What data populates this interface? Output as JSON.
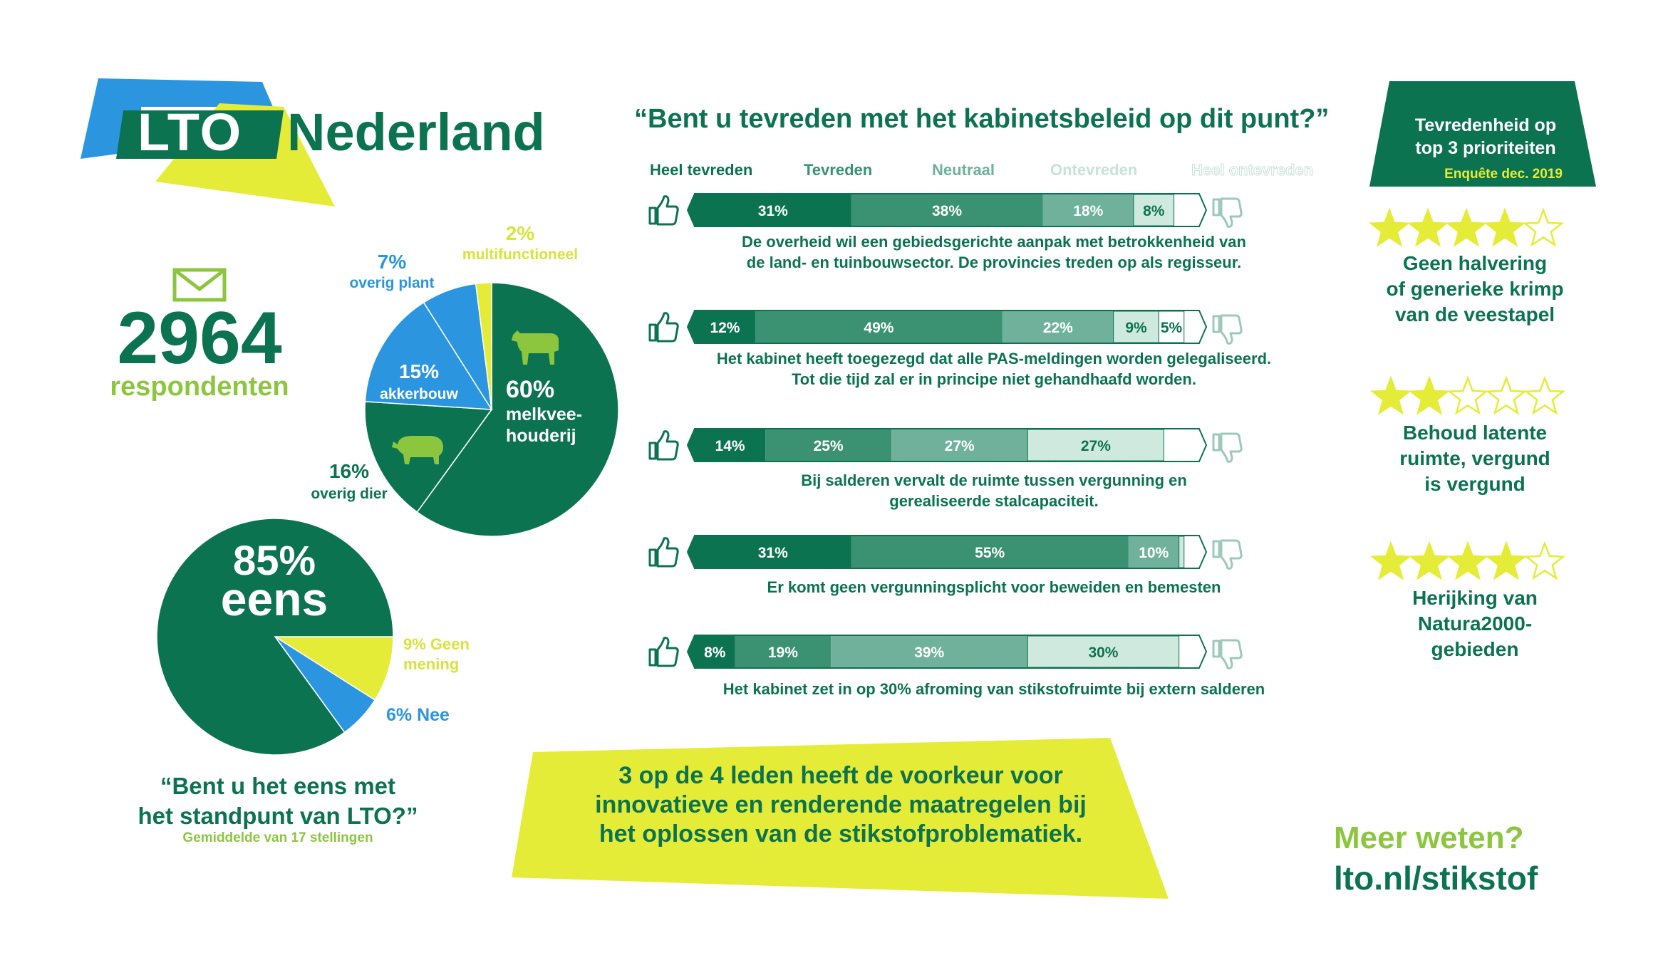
{
  "logo": {
    "badge": "LTO",
    "name": "Nederland"
  },
  "respondents": {
    "count": "2964",
    "label": "respondenten"
  },
  "sector_pie": {
    "labels": [
      {
        "pct": "60%",
        "name": "melkvee-",
        "name2": "houderij"
      },
      {
        "pct": "16%",
        "name": "overig dier"
      },
      {
        "pct": "15%",
        "name": "akkerbouw"
      },
      {
        "pct": "7%",
        "name": "overig plant"
      },
      {
        "pct": "2%",
        "name": "multifunctioneel"
      }
    ]
  },
  "agree_pie": {
    "big": "85%",
    "big2": "eens",
    "no_label": "6% Nee",
    "neutral_label": "9% Geen",
    "neutral_label2": "mening",
    "question": "“Bent u het eens met",
    "question2": "het standpunt van LTO?”",
    "note": "Gemiddelde van 17 stellingen"
  },
  "survey": {
    "question": "“Bent u tevreden met het kabinetsbeleid op dit punt?”",
    "legend": [
      "Heel tevreden",
      "Tevreden",
      "Neutraal",
      "Ontevreden",
      "Heel ontevreden"
    ]
  },
  "statements": [
    {
      "l1": "De overheid wil een gebiedsgerichte aanpak met betrokkenheid van",
      "l2": "de land- en tuinbouwsector. De provincies treden op als regisseur."
    },
    {
      "l1": "Het kabinet heeft toegezegd dat alle PAS-meldingen worden gelegaliseerd.",
      "l2": "Tot die tijd zal er in principe niet gehandhaafd worden."
    },
    {
      "l1": "Bij salderen vervalt de ruimte tussen vergunning en",
      "l2": "gerealiseerde stalcapaciteit."
    },
    {
      "l1": "Er komt geen vergunningsplicht voor beweiden en bemesten",
      "l2": ""
    },
    {
      "l1": "Het kabinet zet in op 30% afroming van stikstofruimte bij extern salderen",
      "l2": ""
    }
  ],
  "priorities": {
    "title": "Tevredenheid op",
    "title2": "top 3 prioriteiten",
    "subtitle": "Enquête dec. 2019",
    "items": [
      {
        "stars": 4,
        "l1": "Geen halvering",
        "l2": "of generieke krimp",
        "l3": "van de veestapel"
      },
      {
        "stars": 2,
        "l1": "Behoud latente",
        "l2": "ruimte, vergund",
        "l3": "is vergund"
      },
      {
        "stars": 4,
        "l1": "Herijking van",
        "l2": "Natura2000-",
        "l3": "gebieden"
      }
    ]
  },
  "banner": {
    "l1": "3 op de 4 leden heeft de voorkeur voor",
    "l2": "innovatieve en renderende maatregelen bij",
    "l3": "het oplossen van de stikstofproblematiek."
  },
  "more": {
    "l1": "Meer weten?",
    "l2": "lto.nl/stikstof"
  },
  "colors": {
    "dark_green": "#0c7351",
    "green2": "#3a9273",
    "green3": "#6fb19a",
    "green4": "#cfe9df",
    "light_green": "#8cc63f",
    "blue": "#2b95e0",
    "yellow": "#e5ec38"
  },
  "chart_data": [
    {
      "type": "pie",
      "labels": [
        "melkveehouderij",
        "overig dier",
        "akkerbouw",
        "overig plant",
        "multifunctioneel"
      ],
      "values": [
        60,
        16,
        15,
        7,
        2
      ]
    },
    {
      "type": "pie",
      "labels": [
        "eens",
        "Nee",
        "Geen mening"
      ],
      "values": [
        85,
        6,
        9
      ]
    },
    {
      "type": "bar",
      "stacked": true,
      "orientation": "horizontal",
      "series_names": [
        "Heel tevreden",
        "Tevreden",
        "Neutraal",
        "Ontevreden",
        "Heel ontevreden"
      ],
      "rows": [
        {
          "values": [
            31,
            38,
            18,
            8,
            0
          ],
          "labels": [
            "31%",
            "38%",
            "18%",
            "8%",
            ""
          ]
        },
        {
          "values": [
            12,
            49,
            22,
            9,
            5
          ],
          "labels": [
            "12%",
            "49%",
            "22%",
            "9%",
            "5%"
          ]
        },
        {
          "values": [
            14,
            25,
            27,
            27,
            0
          ],
          "labels": [
            "14%",
            "25%",
            "27%",
            "27%",
            ""
          ]
        },
        {
          "values": [
            31,
            55,
            10,
            1,
            0
          ],
          "labels": [
            "31%",
            "55%",
            "10%",
            "",
            ""
          ]
        },
        {
          "values": [
            8,
            19,
            39,
            30,
            0
          ],
          "labels": [
            "8%",
            "19%",
            "39%",
            "30%",
            ""
          ]
        }
      ]
    }
  ]
}
